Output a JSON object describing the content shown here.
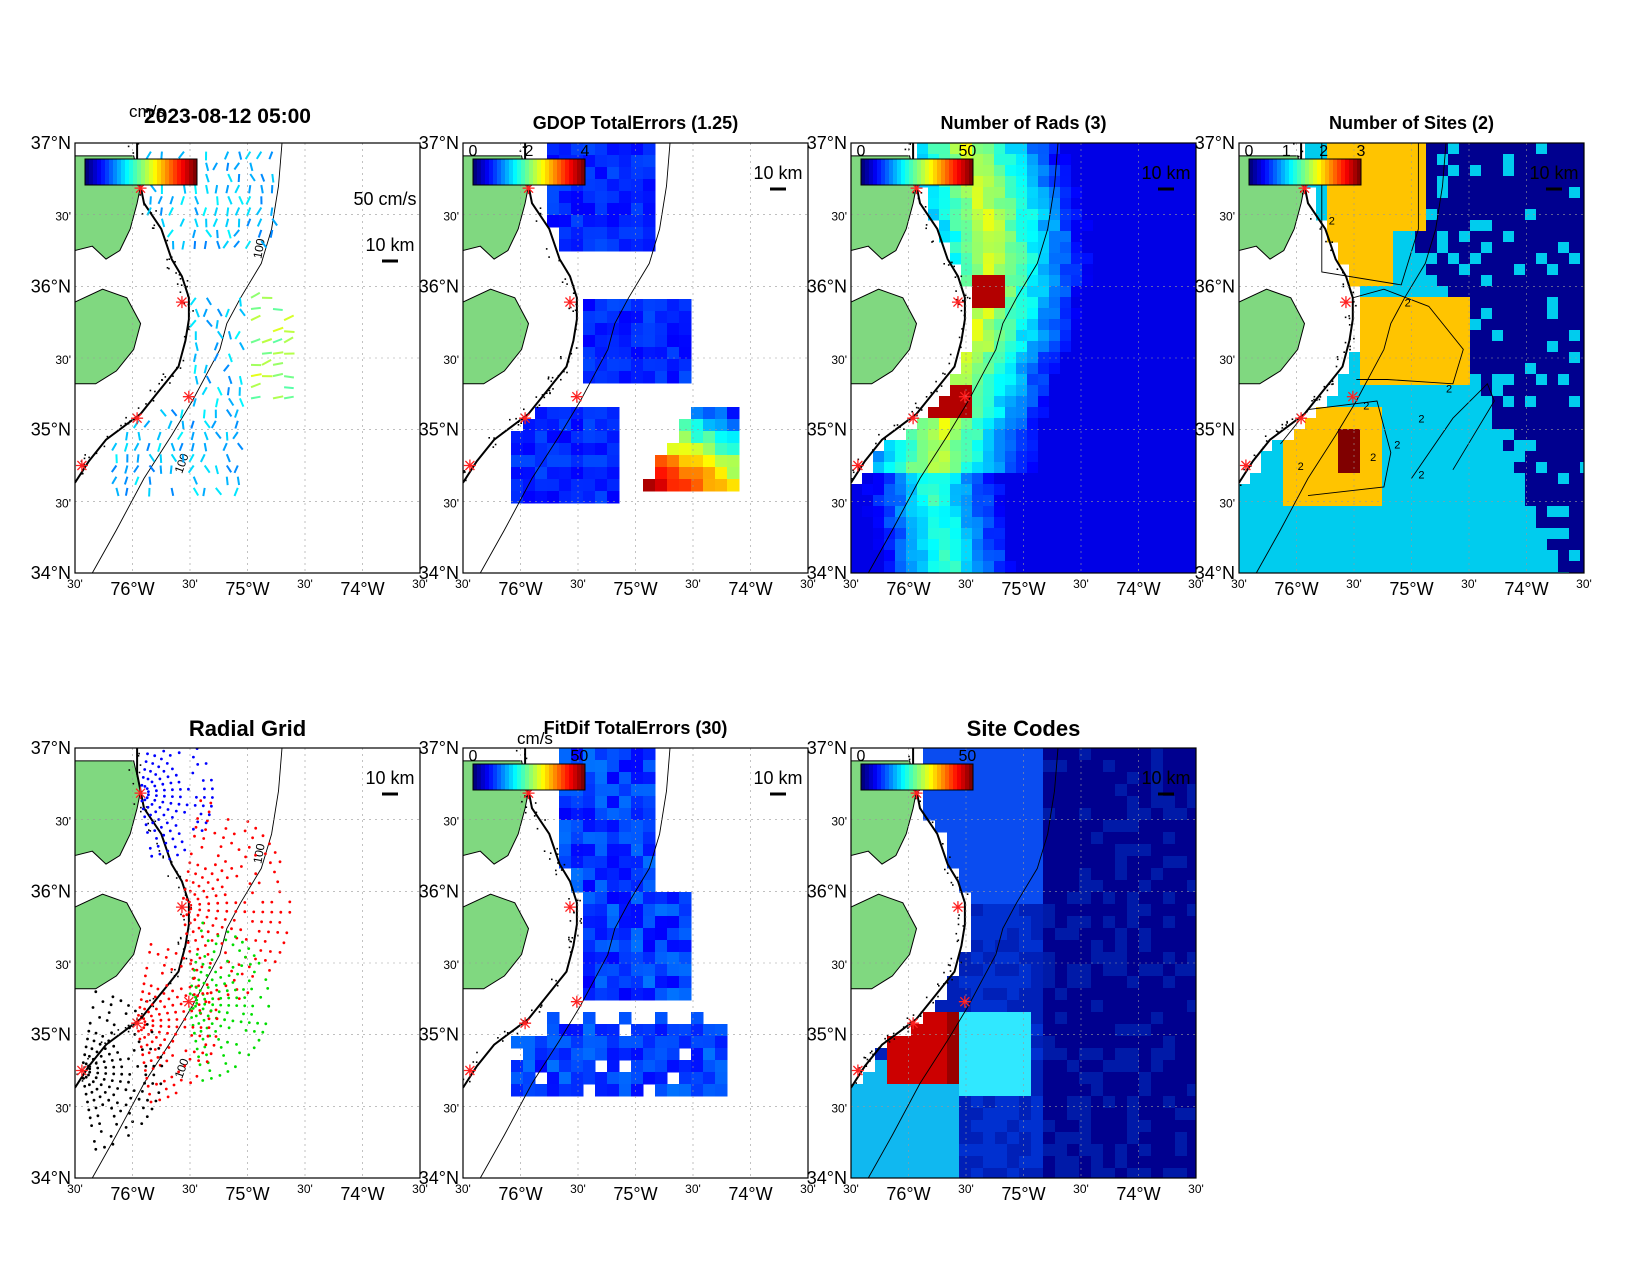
{
  "figure": {
    "timestamp": "2023-08-12 05:00",
    "lat_ticks": [
      "37°N",
      "30'",
      "36°N",
      "30'",
      "35°N",
      "30'",
      "34°N"
    ],
    "lon_ticks": [
      "30'",
      "76°W",
      "30'",
      "75°W",
      "30'",
      "74°W",
      "30'"
    ],
    "scale_label": "10 km",
    "panels": [
      {
        "key": "vectors",
        "title": "2023-08-12 05:00",
        "colorbar_unit": "cm/s",
        "colorbar_ticks": [],
        "vector_scale_label": "50 cm/s"
      },
      {
        "key": "gdop",
        "title": "GDOP TotalErrors (1.25)",
        "colorbar_unit": "",
        "colorbar_ticks": [
          "0",
          "2",
          "4"
        ]
      },
      {
        "key": "nrads",
        "title": "Number of Rads (3)",
        "colorbar_unit": "",
        "colorbar_ticks": [
          "0",
          "50"
        ]
      },
      {
        "key": "nsites",
        "title": "Number of Sites (2)",
        "colorbar_unit": "",
        "colorbar_ticks": [
          "0",
          "1",
          "2",
          "3"
        ],
        "contour_label": "2"
      },
      {
        "key": "radgrid",
        "title": "Radial Grid",
        "colorbar_unit": "",
        "colorbar_ticks": []
      },
      {
        "key": "fitdif",
        "title": "FitDif TotalErrors (30)",
        "colorbar_unit": "cm/s",
        "colorbar_ticks": [
          "0",
          "50"
        ]
      },
      {
        "key": "sitecodes",
        "title": "Site Codes",
        "colorbar_unit": "",
        "colorbar_ticks": [
          "0",
          "50"
        ]
      }
    ],
    "isobath_label": "100",
    "colors": {
      "land": "#80d880",
      "site_marker": "#ff2020",
      "radial_sites": [
        "#0000ff",
        "#ff0000",
        "#00dd00",
        "#ff0000",
        "#000000"
      ],
      "nsites_levels": [
        "#00008f",
        "#00ccee",
        "#ffc400",
        "#800000"
      ]
    }
  }
}
